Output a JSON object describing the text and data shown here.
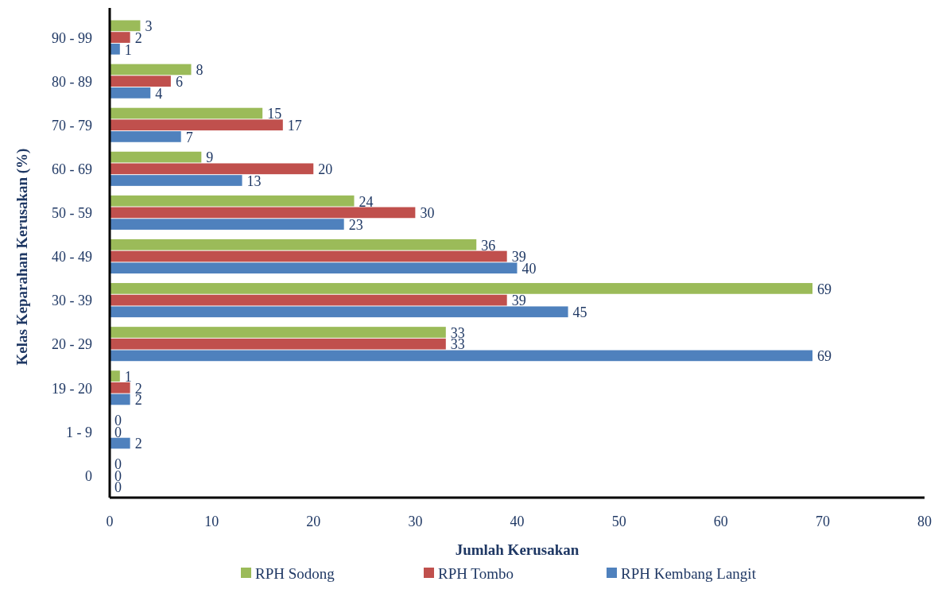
{
  "chart_data": {
    "type": "bar",
    "orientation": "horizontal",
    "xlabel": "Jumlah Kerusakan",
    "ylabel": "Kelas Keparahan Kerusakan (%)",
    "categories": [
      "90 - 99",
      "80 - 89",
      "70 - 79",
      "60 - 69",
      "50 - 59",
      "40 - 49",
      "30 - 39",
      "20 - 29",
      "19 - 20",
      "1 - 9",
      "0"
    ],
    "series": [
      {
        "name": "RPH Sodong",
        "color": "#9bbb59",
        "values": [
          3,
          8,
          15,
          9,
          24,
          36,
          69,
          33,
          1,
          0,
          0
        ]
      },
      {
        "name": "RPH Tombo",
        "color": "#c0504d",
        "values": [
          2,
          6,
          17,
          20,
          30,
          39,
          39,
          33,
          2,
          0,
          0
        ]
      },
      {
        "name": "RPH Kembang Langit",
        "color": "#4f81bd",
        "values": [
          1,
          4,
          7,
          13,
          23,
          40,
          45,
          69,
          2,
          2,
          0
        ]
      }
    ],
    "xlim": [
      0,
      80
    ],
    "xticks": [
      0,
      10,
      20,
      30,
      40,
      50,
      60,
      70,
      80
    ],
    "data_labels": true,
    "legend": "bottom",
    "grid": false
  }
}
